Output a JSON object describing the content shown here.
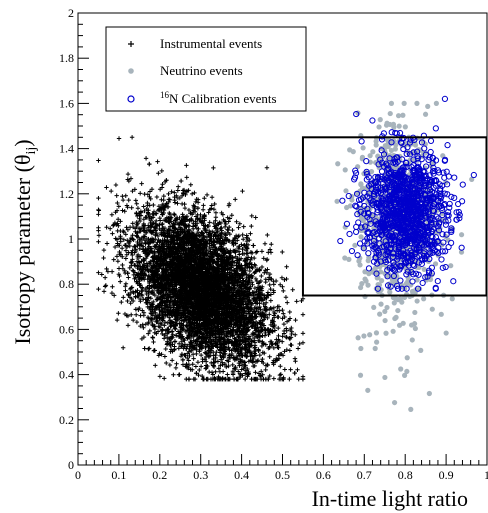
{
  "chart_data": {
    "type": "scatter",
    "xlabel": "In-time light ratio",
    "ylabel_parts": [
      "Isotropy parameter (",
      "θ",
      "ij",
      ")"
    ],
    "xlim": [
      0,
      1
    ],
    "ylim": [
      0,
      2
    ],
    "x_ticks": [
      "0",
      "0.1",
      "0.2",
      "0.3",
      "0.4",
      "0.5",
      "0.6",
      "0.7",
      "0.8",
      "0.9",
      "1"
    ],
    "y_ticks": [
      "0",
      "0.2",
      "0.4",
      "0.6",
      "0.8",
      "1",
      "1.2",
      "1.4",
      "1.6",
      "1.8",
      "2"
    ],
    "cut_box": {
      "x": [
        0.55,
        1.0
      ],
      "y": [
        0.75,
        1.45
      ]
    },
    "legend": {
      "position": "top-left",
      "entries": [
        {
          "marker": "+",
          "label": "Instrumental events"
        },
        {
          "marker": "•",
          "label": "Neutrino events"
        },
        {
          "marker": "○",
          "label_sup": "16",
          "label": "N Calibration events"
        }
      ]
    },
    "series": [
      {
        "name": "Instrumental events",
        "marker": "plus",
        "color": "#000000",
        "distribution": "dense cluster",
        "center": [
          0.3,
          0.78
        ],
        "x_range": [
          0.05,
          0.55
        ],
        "y_range": [
          0.38,
          1.45
        ],
        "approx_points": 6000
      },
      {
        "name": "Neutrino events",
        "marker": "dot",
        "color": "#a8b4bc",
        "distribution": "cluster",
        "center": [
          0.78,
          1.12
        ],
        "x_range": [
          0.6,
          0.97
        ],
        "y_range": [
          0.24,
          1.6
        ],
        "approx_points": 900
      },
      {
        "name": "16N Calibration events",
        "marker": "open-circle",
        "color": "#0000cc",
        "distribution": "cluster",
        "center": [
          0.8,
          1.12
        ],
        "x_range": [
          0.63,
          0.98
        ],
        "y_range": [
          0.78,
          1.62
        ],
        "approx_points": 1100
      }
    ]
  }
}
